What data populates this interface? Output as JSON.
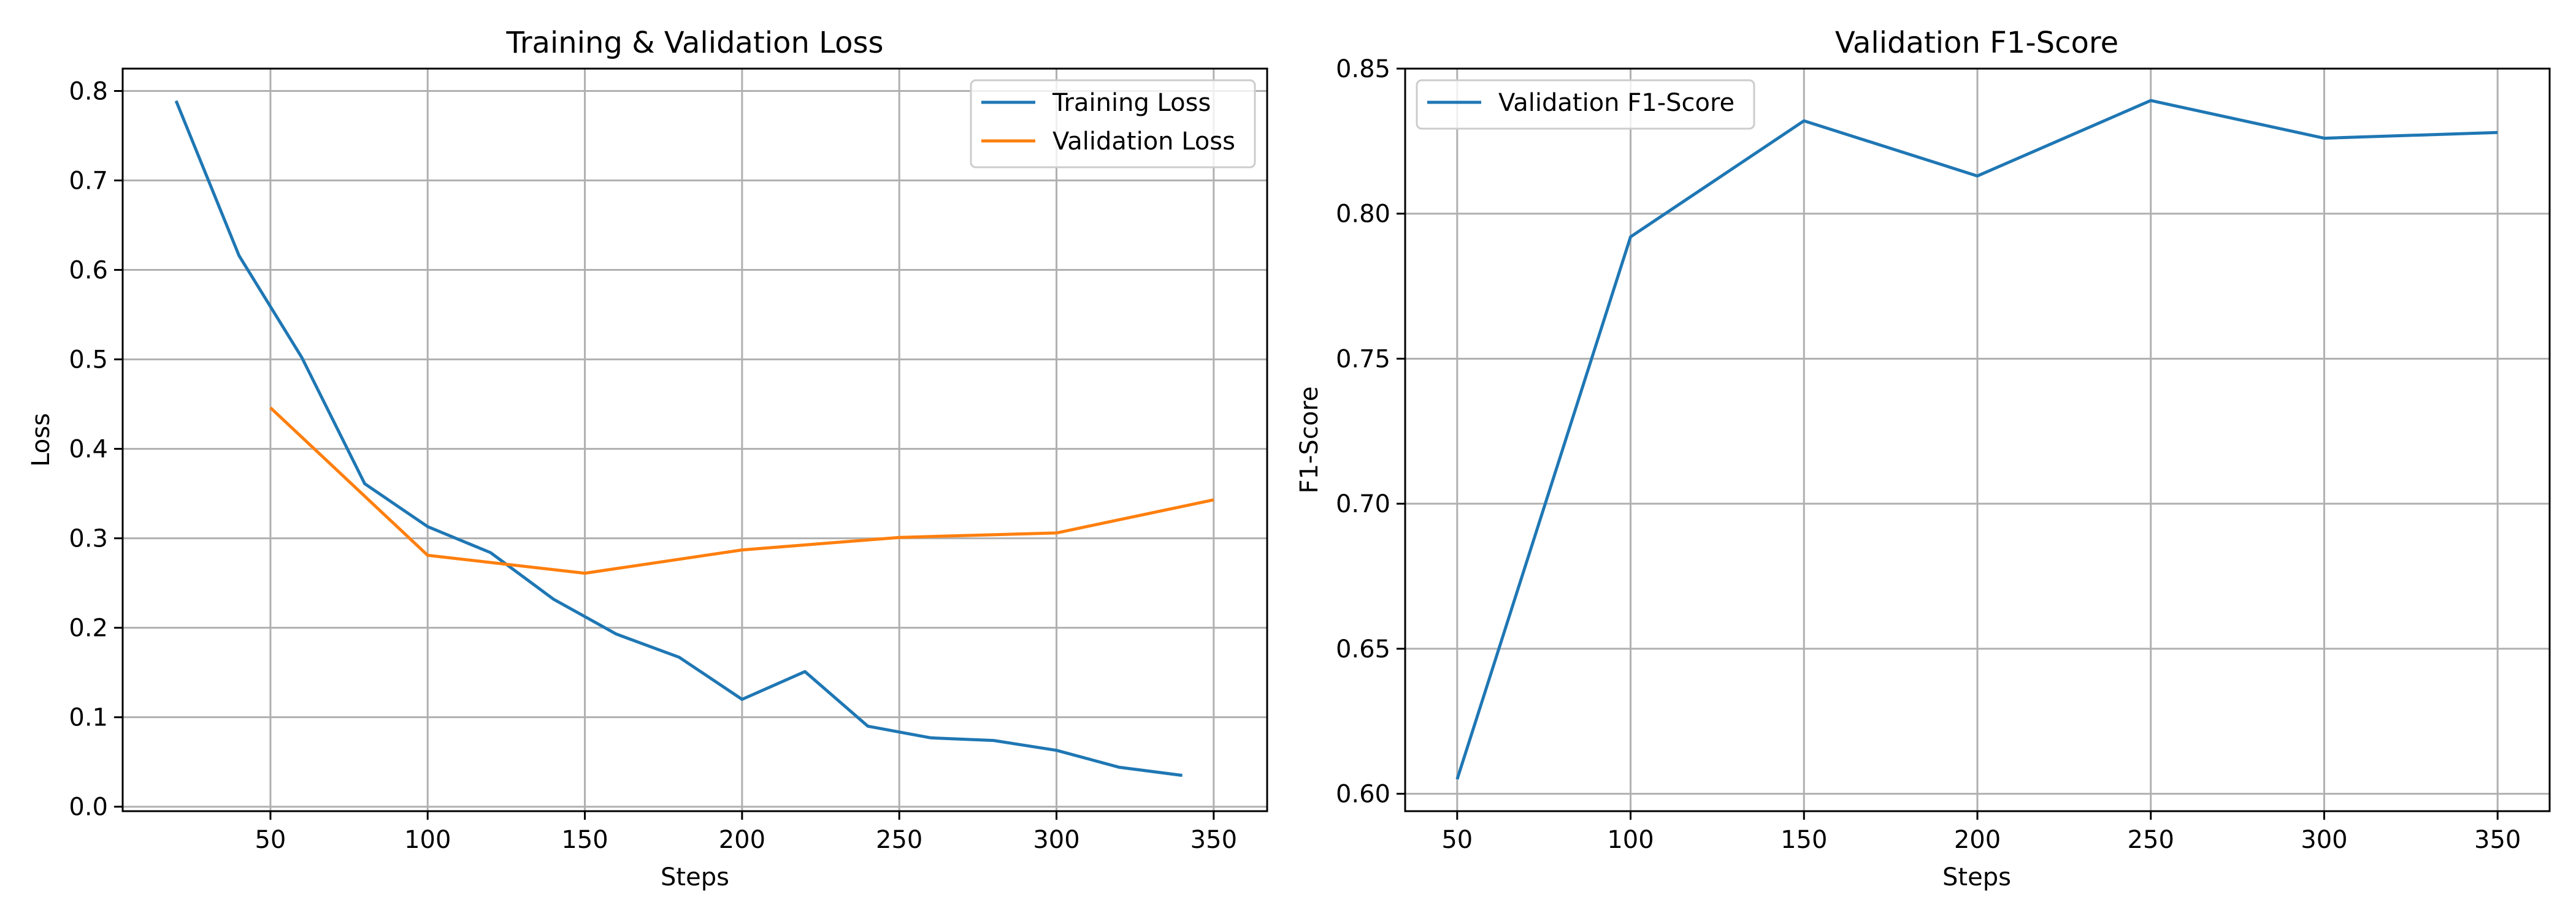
{
  "chart_data": [
    {
      "type": "line",
      "title": "Training & Validation Loss",
      "xlabel": "Steps",
      "ylabel": "Loss",
      "xlim": [
        3,
        367
      ],
      "ylim": [
        -0.005,
        0.825
      ],
      "xticks": [
        50,
        100,
        150,
        200,
        250,
        300,
        350
      ],
      "yticks": [
        0.0,
        0.1,
        0.2,
        0.3,
        0.4,
        0.5,
        0.6,
        0.7,
        0.8
      ],
      "ytick_labels": [
        "0.0",
        "0.1",
        "0.2",
        "0.3",
        "0.4",
        "0.5",
        "0.6",
        "0.7",
        "0.8"
      ],
      "grid": true,
      "legend": "upper-right",
      "series": [
        {
          "name": "Training Loss",
          "color": "#1f77b4",
          "x": [
            20,
            40,
            60,
            80,
            100,
            120,
            140,
            160,
            180,
            200,
            220,
            240,
            260,
            280,
            300,
            320,
            340
          ],
          "y": [
            0.789,
            0.616,
            0.502,
            0.361,
            0.313,
            0.284,
            0.232,
            0.193,
            0.167,
            0.12,
            0.151,
            0.09,
            0.077,
            0.074,
            0.063,
            0.044,
            0.035
          ]
        },
        {
          "name": "Validation Loss",
          "color": "#ff7f0e",
          "x": [
            50,
            100,
            150,
            200,
            250,
            300,
            350
          ],
          "y": [
            0.446,
            0.281,
            0.261,
            0.287,
            0.301,
            0.306,
            0.343
          ]
        }
      ]
    },
    {
      "type": "line",
      "title": "Validation F1-Score",
      "xlabel": "Steps",
      "ylabel": "F1-Score",
      "xlim": [
        35,
        365
      ],
      "ylim": [
        0.594,
        0.85
      ],
      "xticks": [
        50,
        100,
        150,
        200,
        250,
        300,
        350
      ],
      "yticks": [
        0.6,
        0.65,
        0.7,
        0.75,
        0.8,
        0.85
      ],
      "ytick_labels": [
        "0.60",
        "0.65",
        "0.70",
        "0.75",
        "0.80",
        "0.85"
      ],
      "grid": true,
      "legend": "upper-left",
      "series": [
        {
          "name": "Validation F1-Score",
          "color": "#1f77b4",
          "x": [
            50,
            100,
            150,
            200,
            250,
            300,
            350
          ],
          "y": [
            0.605,
            0.792,
            0.832,
            0.813,
            0.839,
            0.826,
            0.828
          ]
        }
      ]
    }
  ]
}
